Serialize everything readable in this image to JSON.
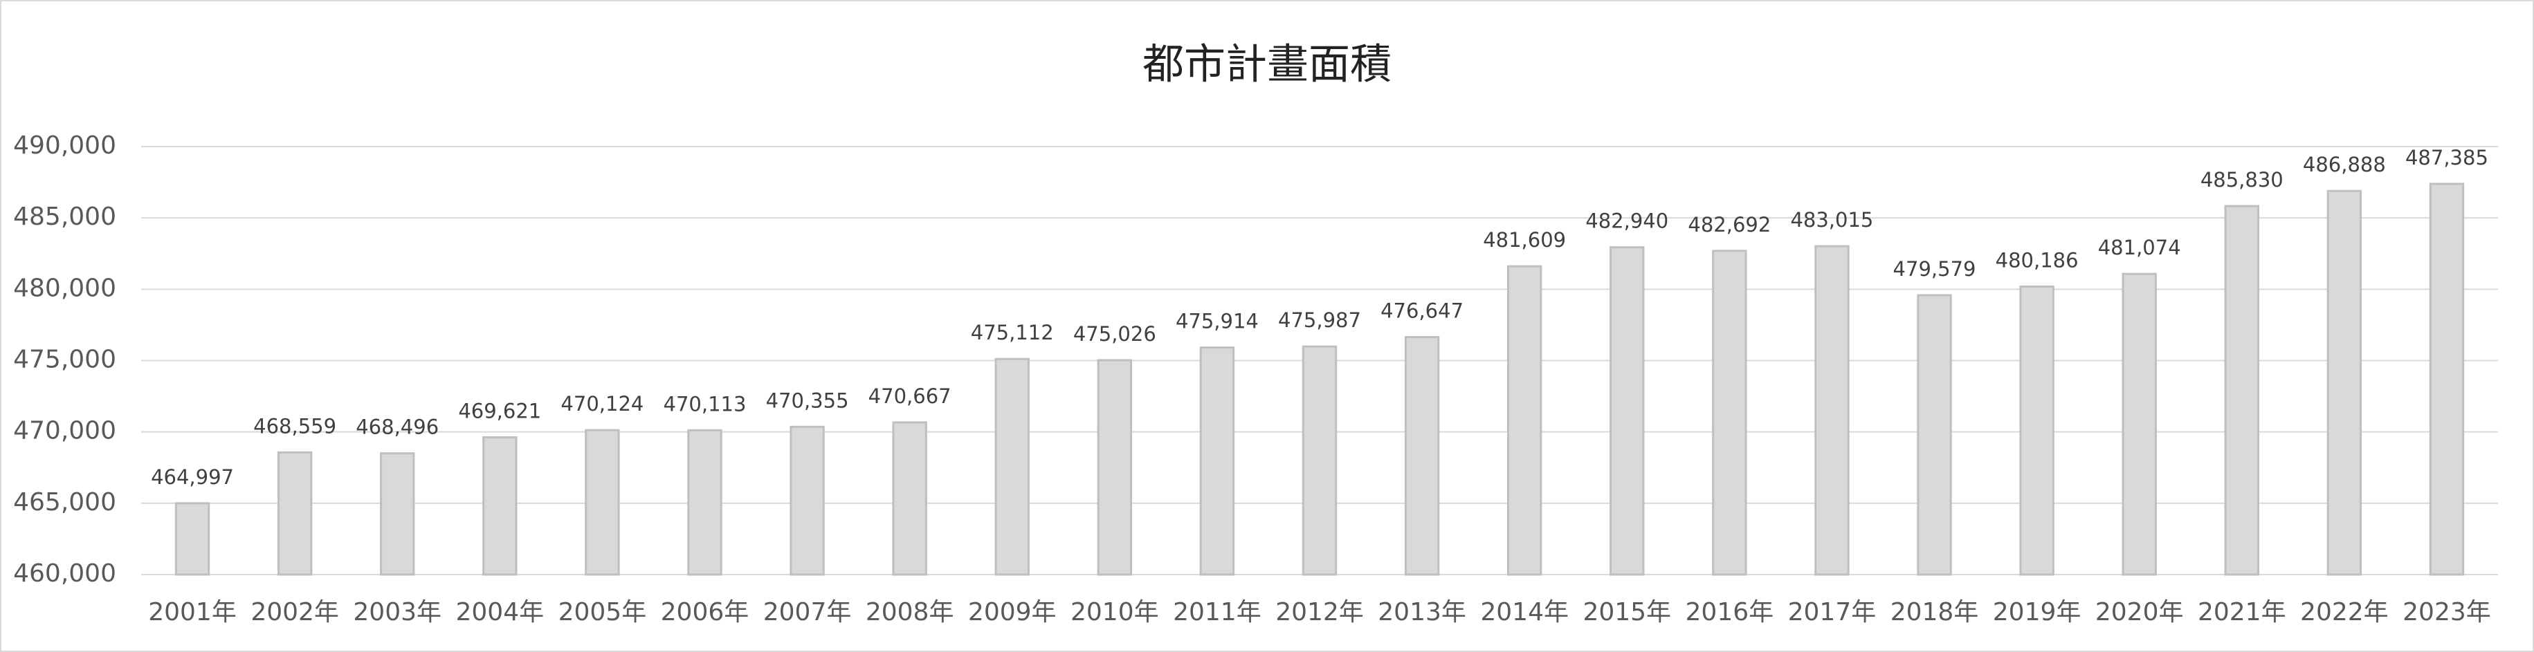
{
  "chart_data": {
    "type": "bar",
    "title": "都市計畫面積",
    "categories": [
      "2001年",
      "2002年",
      "2003年",
      "2004年",
      "2005年",
      "2006年",
      "2007年",
      "2008年",
      "2009年",
      "2010年",
      "2011年",
      "2012年",
      "2013年",
      "2014年",
      "2015年",
      "2016年",
      "2017年",
      "2018年",
      "2019年",
      "2020年",
      "2021年",
      "2022年",
      "2023年"
    ],
    "values": [
      464997,
      468559,
      468496,
      469621,
      470124,
      470113,
      470355,
      470667,
      475112,
      475026,
      475914,
      475987,
      476647,
      481609,
      482940,
      482692,
      483015,
      479579,
      480186,
      481074,
      485830,
      486888,
      487385
    ],
    "value_labels": [
      "464,997",
      "468,559",
      "468,496",
      "469,621",
      "470,124",
      "470,113",
      "470,355",
      "470,667",
      "475,112",
      "475,026",
      "475,914",
      "475,987",
      "476,647",
      "481,609",
      "482,940",
      "482,692",
      "483,015",
      "479,579",
      "480,186",
      "481,074",
      "485,830",
      "486,888",
      "487,385"
    ],
    "color": "#d9d9d9",
    "ylim": [
      460000,
      490000
    ],
    "yticks": [
      {
        "value": 460000,
        "label": "460,000"
      },
      {
        "value": 465000,
        "label": "465,000"
      },
      {
        "value": 470000,
        "label": "470,000"
      },
      {
        "value": 475000,
        "label": "475,000"
      },
      {
        "value": 480000,
        "label": "480,000"
      },
      {
        "value": 485000,
        "label": "485,000"
      },
      {
        "value": 490000,
        "label": "490,000"
      }
    ],
    "grid": true
  }
}
